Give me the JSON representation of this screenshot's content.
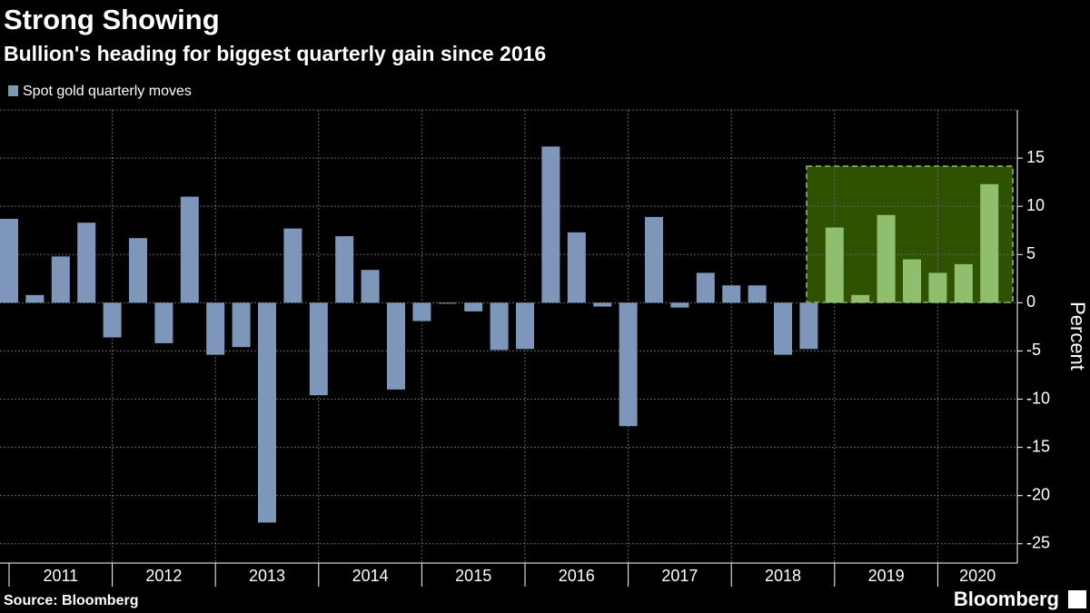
{
  "chart_data": {
    "type": "bar",
    "title": "Strong Showing",
    "subtitle": "Bullion's heading for biggest quarterly gain since 2016",
    "y_label": "Percent",
    "source": "Source: Bloomberg",
    "brand": "Bloomberg",
    "series": [
      {
        "name": "Spot gold quarterly moves",
        "color": "#7f96bb",
        "values": [
          8.7,
          0.8,
          4.8,
          8.3,
          -3.6,
          6.7,
          -4.2,
          11.0,
          -5.4,
          -4.6,
          -22.8,
          7.7,
          -9.6,
          6.9,
          3.4,
          -9.0,
          -1.9,
          -0.1,
          -0.9,
          -4.9,
          -4.8,
          16.2,
          7.3,
          -0.4,
          -12.8,
          8.9,
          -0.5,
          3.1,
          1.8,
          1.8,
          -5.4,
          -4.8,
          7.8,
          0.8,
          9.1,
          4.5,
          3.1,
          4.0,
          12.3
        ],
        "colors": [
          "#7f96bb",
          "#7f96bb",
          "#7f96bb",
          "#7f96bb",
          "#7f96bb",
          "#7f96bb",
          "#7f96bb",
          "#7f96bb",
          "#7f96bb",
          "#7f96bb",
          "#7f96bb",
          "#7f96bb",
          "#7f96bb",
          "#7f96bb",
          "#7f96bb",
          "#7f96bb",
          "#7f96bb",
          "#7f96bb",
          "#7f96bb",
          "#7f96bb",
          "#7f96bb",
          "#7f96bb",
          "#7f96bb",
          "#7f96bb",
          "#7f96bb",
          "#7f96bb",
          "#7f96bb",
          "#7f96bb",
          "#7f96bb",
          "#7f96bb",
          "#7f96bb",
          "#7f96bb",
          "#8fbf6e",
          "#8fbf6e",
          "#8fbf6e",
          "#8fbf6e",
          "#8fbf6e",
          "#8fbf6e",
          "#8fbf6e"
        ]
      }
    ],
    "categories": [
      null,
      null,
      null,
      null,
      null,
      null,
      null,
      null,
      null,
      null,
      null,
      null,
      null,
      null,
      null,
      null,
      null,
      null,
      null,
      null,
      null,
      null,
      null,
      null,
      null,
      null,
      null,
      null,
      null,
      null,
      null,
      null,
      null,
      null,
      null,
      null,
      null,
      null,
      null
    ],
    "year_labels": [
      "2011",
      "2012",
      "2013",
      "2014",
      "2015",
      "2016",
      "2017",
      "2018",
      "2019",
      "2020"
    ],
    "ylim": [
      -27,
      20
    ],
    "yticks": [
      -25,
      -20,
      -15,
      -10,
      -5,
      0,
      5,
      10,
      15
    ],
    "grid": true
  }
}
